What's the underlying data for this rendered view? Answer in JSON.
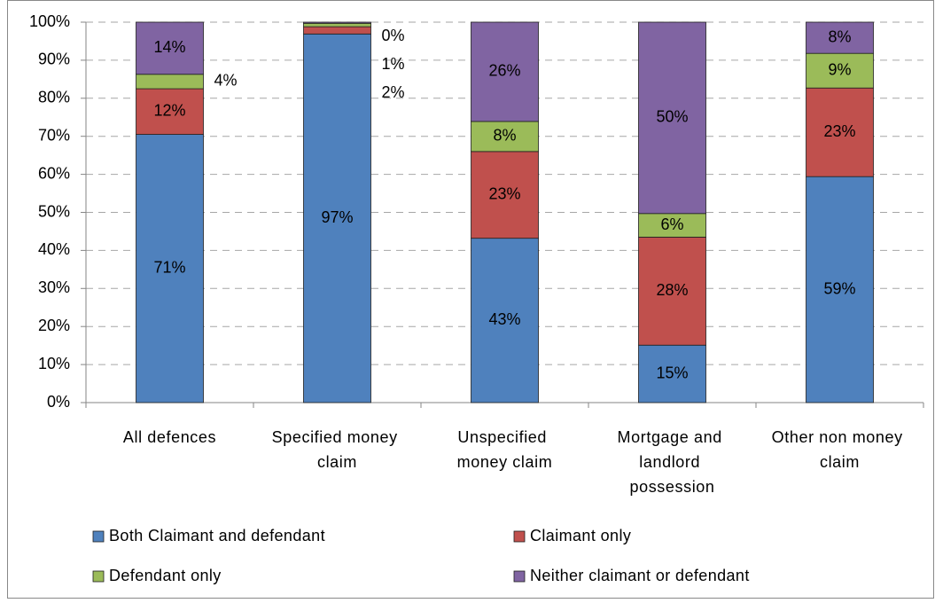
{
  "chart_data": {
    "type": "stacked-bar",
    "categories": [
      "All defences",
      "Specified money claim",
      "Unspecified money claim",
      "Mortgage and landlord possession",
      "Other non money claim"
    ],
    "series": [
      {
        "name": "Both Claimant and defendant",
        "color": "#4f81bd",
        "values": [
          70.5,
          96.9,
          43.2,
          15.1,
          59.4
        ],
        "value_labels": [
          "71%",
          "97%",
          "43%",
          "15%",
          "59%"
        ]
      },
      {
        "name": "Claimant only",
        "color": "#c0504d",
        "values": [
          12,
          1.9,
          22.8,
          28.4,
          23.3
        ],
        "value_labels": [
          "12%",
          "2%",
          "23%",
          "28%",
          "23%"
        ]
      },
      {
        "name": "Defendant only",
        "color": "#9bbb59",
        "values": [
          3.8,
          0.9,
          7.9,
          6.2,
          9.1
        ],
        "value_labels": [
          "4%",
          "1%",
          "8%",
          "6%",
          "9%"
        ]
      },
      {
        "name": "Neither claimant or defendant",
        "color": "#8064a2",
        "values": [
          13.7,
          0.3,
          26.1,
          50.3,
          8.2
        ],
        "value_labels": [
          "14%",
          "0%",
          "26%",
          "50%",
          "8%"
        ]
      }
    ],
    "ylim": [
      0,
      100
    ],
    "yticks": [
      {
        "value": 0,
        "label": "0%"
      },
      {
        "value": 10,
        "label": "10%"
      },
      {
        "value": 20,
        "label": "20%"
      },
      {
        "value": 30,
        "label": "30%"
      },
      {
        "value": 40,
        "label": "40%"
      },
      {
        "value": 50,
        "label": "50%"
      },
      {
        "value": 60,
        "label": "60%"
      },
      {
        "value": 70,
        "label": "70%"
      },
      {
        "value": 80,
        "label": "80%"
      },
      {
        "value": 90,
        "label": "90%"
      },
      {
        "value": 100,
        "label": "100%"
      }
    ],
    "grid": true
  }
}
